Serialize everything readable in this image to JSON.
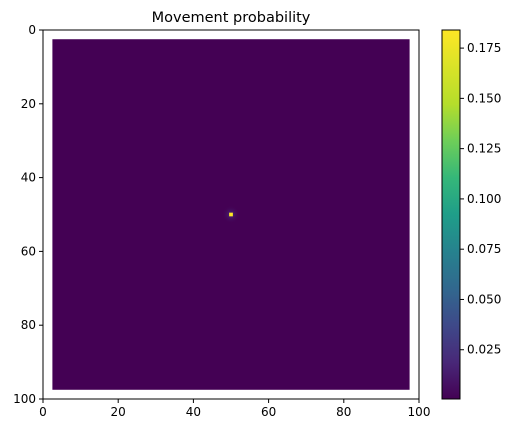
{
  "chart_data": {
    "type": "heatmap",
    "title": "Movement probability",
    "xlabel": "",
    "ylabel": "",
    "grid": false,
    "x_range": [
      0,
      100
    ],
    "y_range": [
      100,
      0
    ],
    "x_ticks": [
      0,
      20,
      40,
      60,
      80,
      100
    ],
    "y_ticks": [
      0,
      20,
      40,
      60,
      80,
      100
    ],
    "region": {
      "x_min": 2.5,
      "x_max": 97.5,
      "y_min": 2.5,
      "y_max": 97.5
    },
    "background_value": 0.0005,
    "peak": {
      "x": 50,
      "y": 50,
      "value": 0.184
    },
    "colormap": "viridis",
    "colorbar": {
      "min": 0.0005,
      "max": 0.184,
      "ticks": [
        0.025,
        0.05,
        0.075,
        0.1,
        0.125,
        0.15,
        0.175
      ],
      "tick_labels": [
        "0.025",
        "0.050",
        "0.075",
        "0.100",
        "0.125",
        "0.150",
        "0.175"
      ]
    }
  }
}
